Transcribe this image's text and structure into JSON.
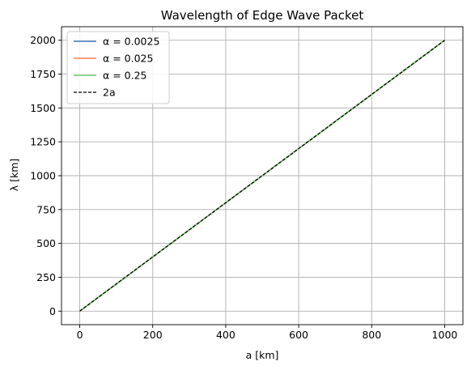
{
  "chart_data": {
    "type": "line",
    "title": "Wavelength of Edge Wave Packet",
    "xlabel": "a [km]",
    "ylabel": "λ [km]",
    "xlim": [
      -50,
      1050
    ],
    "ylim": [
      -100,
      2100
    ],
    "x_ticks": [
      0,
      200,
      400,
      600,
      800,
      1000
    ],
    "y_ticks": [
      0,
      250,
      500,
      750,
      1000,
      1250,
      1500,
      1750,
      2000
    ],
    "grid": true,
    "legend_position": "upper-left",
    "series": [
      {
        "name": "α = 0.0025",
        "color": "#3a76b8",
        "style": "solid",
        "x": [
          0,
          1000
        ],
        "y": [
          0,
          2000
        ]
      },
      {
        "name": "α = 0.025",
        "color": "#ff7f50",
        "style": "solid",
        "x": [
          0,
          1000
        ],
        "y": [
          0,
          2000
        ]
      },
      {
        "name": "α = 0.25",
        "color": "#66cc66",
        "style": "solid",
        "x": [
          0,
          1000
        ],
        "y": [
          0,
          2000
        ]
      },
      {
        "name": "2a",
        "color": "#000000",
        "style": "dashed",
        "x": [
          0,
          1000
        ],
        "y": [
          0,
          2000
        ]
      }
    ]
  }
}
